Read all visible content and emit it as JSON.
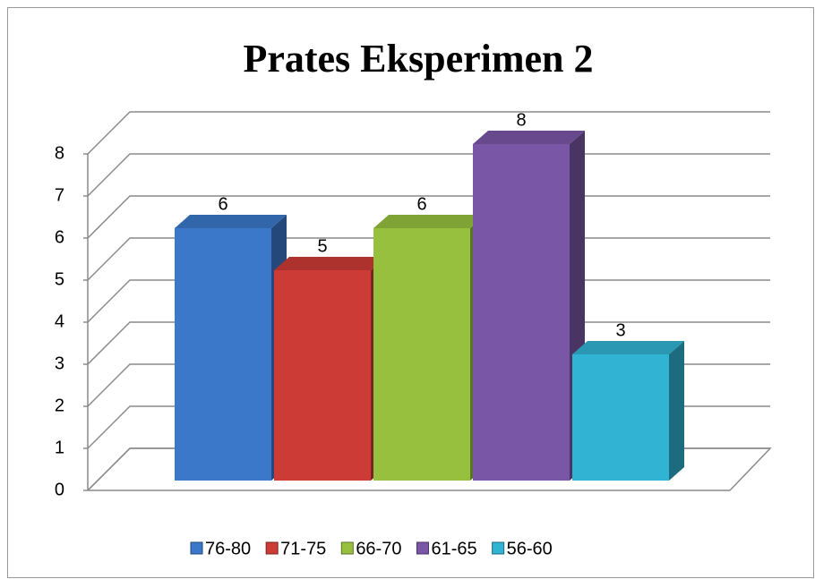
{
  "chart_data": {
    "type": "bar3d",
    "title": "Prates Eksperimen 2",
    "categories": [
      null
    ],
    "series": [
      {
        "name": "76-80",
        "color": "#3b78c9",
        "values": [
          6
        ]
      },
      {
        "name": "71-75",
        "color": "#cc3b36",
        "values": [
          5
        ]
      },
      {
        "name": "66-70",
        "color": "#97c03f",
        "values": [
          6
        ]
      },
      {
        "name": "61-65",
        "color": "#7a56a6",
        "values": [
          8
        ]
      },
      {
        "name": "56-60",
        "color": "#31b3d3",
        "values": [
          3
        ]
      }
    ],
    "ylim": [
      0,
      8
    ],
    "yticks": [
      0,
      1,
      2,
      3,
      4,
      5,
      6,
      7,
      8
    ],
    "grid": true,
    "legend": "bottom"
  }
}
